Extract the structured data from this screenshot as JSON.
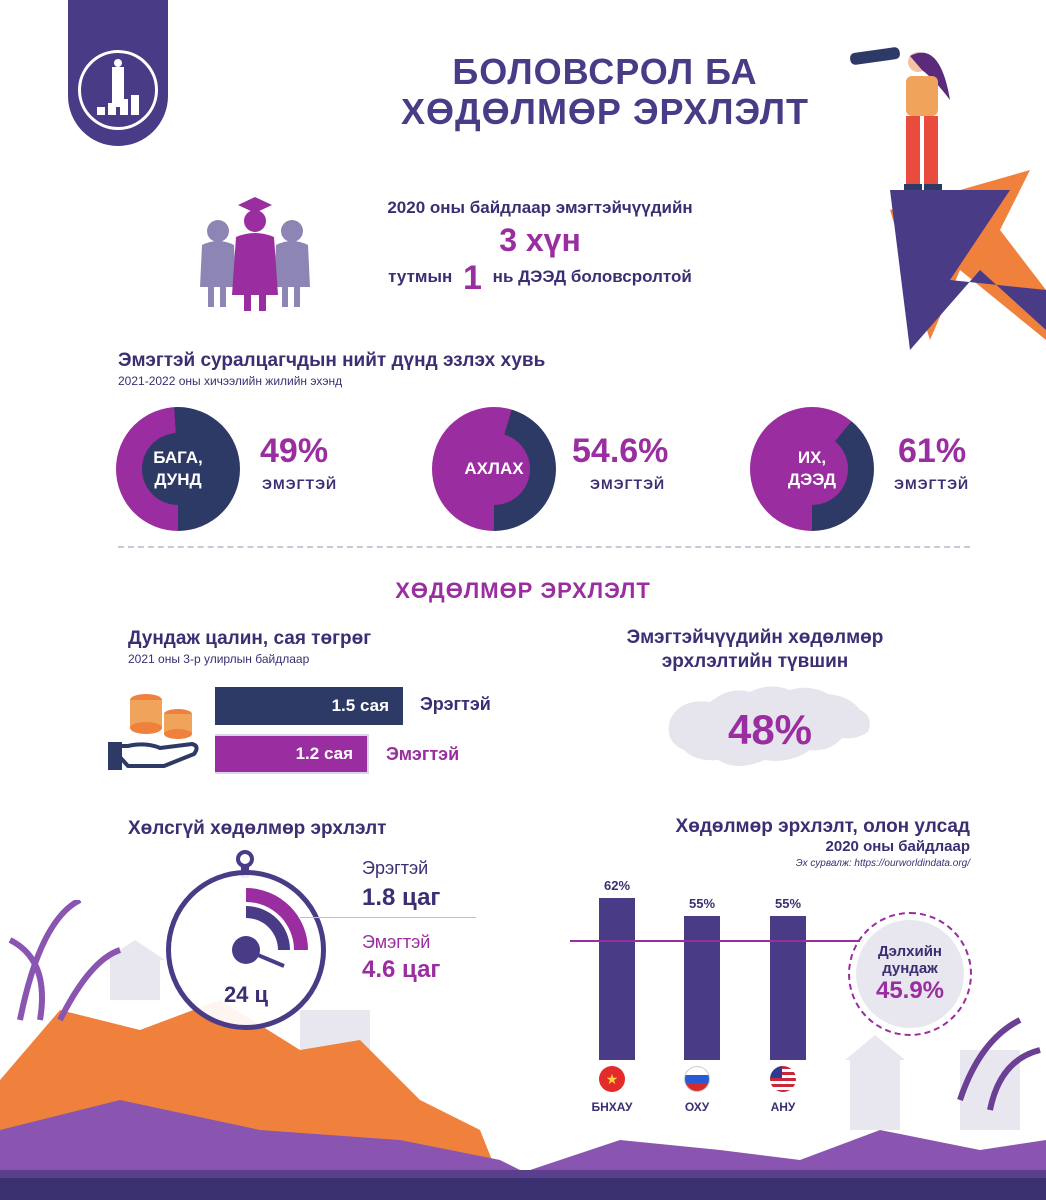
{
  "title": {
    "line1": "БОЛОВСРОЛ БА",
    "line2": "ХӨДӨЛМӨР ЭРХЛЭЛТ"
  },
  "intro": {
    "line1": "2020 оны байдлаар эмэгтэйчүүдийн",
    "big": "3 хүн",
    "pre": "тутмын",
    "num": "1",
    "post": "нь ДЭЭД боловсролтой"
  },
  "students": {
    "title": "Эмэгтэй суралцагчдын нийт дүнд эзлэх хувь",
    "subtitle": "2021-2022 оны хичээлийн жилийн эхэнд",
    "items": [
      {
        "label_line1": "БАГА,",
        "label_line2": "ДУНД",
        "value": "49%",
        "note": "ЭМЭГТЭЙ",
        "fraction": 0.49
      },
      {
        "label_line1": "АХЛАХ",
        "label_line2": "",
        "value": "54.6%",
        "note": "ЭМЭГТЭЙ",
        "fraction": 0.546
      },
      {
        "label_line1": "ИХ,",
        "label_line2": "ДЭЭД",
        "value": "61%",
        "note": "ЭМЭГТЭЙ",
        "fraction": 0.61
      }
    ]
  },
  "employment": {
    "heading": "ХӨДӨЛМӨР ЭРХЛЭЛТ",
    "salary": {
      "title": "Дундаж цалин, сая төгрөг",
      "subtitle": "2021 оны 3-р улирлын байдлаар",
      "male_value": "1.5 сая",
      "male_label": "Эрэгтэй",
      "female_value": "1.2 сая",
      "female_label": "Эмэгтэй"
    },
    "rate": {
      "title_line1": "Эмэгтэйчүүдийн хөдөлмөр",
      "title_line2": "эрхлэлтийн түвшин",
      "value": "48%"
    },
    "unpaid": {
      "title": "Хөлсгүй хөдөлмөр эрхлэлт",
      "male_label": "Эрэгтэй",
      "male_value": "1.8 цаг",
      "female_label": "Эмэгтэй",
      "female_value": "4.6 цаг",
      "clock_label": "24 ц"
    },
    "intl": {
      "title": "Хөдөлмөр эрхлэлт, олон улсад",
      "subtitle": "2020 оны байдлаар",
      "source": "Эх сурвалж: https://ourworldindata.org/",
      "avg_line1": "Дэлхийн",
      "avg_line2": "дундаж",
      "avg_value": "45.9%"
    }
  },
  "chart_data": {
    "type": "bar",
    "categories": [
      "БНХАУ",
      "ОХУ",
      "АНУ"
    ],
    "values": [
      62,
      55,
      55
    ],
    "value_labels": [
      "62%",
      "55%",
      "55%"
    ],
    "reference_line": 45.9,
    "ylim": [
      0,
      100
    ],
    "title": "Хөдөлмөр эрхлэлт, олон улсад",
    "subtitle": "2020 оны байдлаар"
  },
  "colors": {
    "navy": "#2e3a66",
    "purple": "#9a2d9f",
    "violet": "#4a3b86",
    "orange": "#f0813d"
  }
}
